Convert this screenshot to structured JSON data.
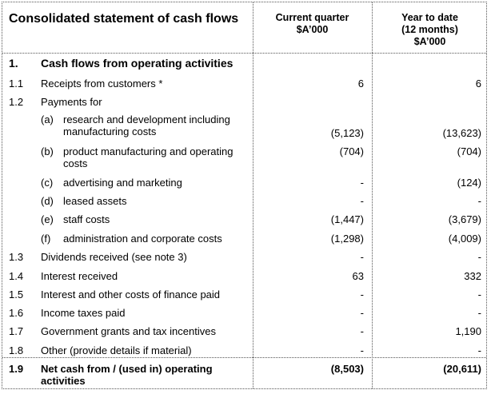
{
  "title": "Consolidated statement of cash flows",
  "headers": {
    "current": [
      "Current quarter",
      "$A’000"
    ],
    "ytd": [
      "Year to date",
      "(12 months)",
      "$A’000"
    ]
  },
  "section": {
    "num": "1.",
    "label": "Cash flows from operating activities"
  },
  "rows": [
    {
      "num": "1.1",
      "label": "Receipts from customers *",
      "current": "6",
      "ytd": "6"
    },
    {
      "num": "1.2",
      "label": "Payments for"
    },
    {
      "letter": "(a)",
      "label": "research and development including manufacturing costs",
      "current": "(5,123)",
      "ytd": "(13,623)"
    },
    {
      "letter": "(b)",
      "label": "product manufacturing and operating costs",
      "current": "(704)",
      "ytd": "(704)"
    },
    {
      "letter": "(c)",
      "label": "advertising and marketing",
      "current": "-",
      "ytd": "(124)"
    },
    {
      "letter": "(d)",
      "label": "leased assets",
      "current": "-",
      "ytd": "-"
    },
    {
      "letter": "(e)",
      "label": "staff costs",
      "current": "(1,447)",
      "ytd": "(3,679)"
    },
    {
      "letter": "(f)",
      "label": "administration and corporate costs",
      "current": "(1,298)",
      "ytd": "(4,009)"
    },
    {
      "num": "1.3",
      "label": "Dividends received (see note 3)",
      "current": "-",
      "ytd": "-"
    },
    {
      "num": "1.4",
      "label": "Interest received",
      "current": "63",
      "ytd": "332"
    },
    {
      "num": "1.5",
      "label": "Interest and other costs of finance paid",
      "current": "-",
      "ytd": "-"
    },
    {
      "num": "1.6",
      "label": "Income taxes paid",
      "current": "-",
      "ytd": "-"
    },
    {
      "num": "1.7",
      "label": "Government grants and tax incentives",
      "current": "-",
      "ytd": "1,190"
    },
    {
      "num": "1.8",
      "label": "Other (provide details if material)",
      "current": "-",
      "ytd": "-"
    }
  ],
  "total": {
    "num": "1.9",
    "label": "Net cash from / (used in) operating activities",
    "current": "(8,503)",
    "ytd": "(20,611)"
  }
}
